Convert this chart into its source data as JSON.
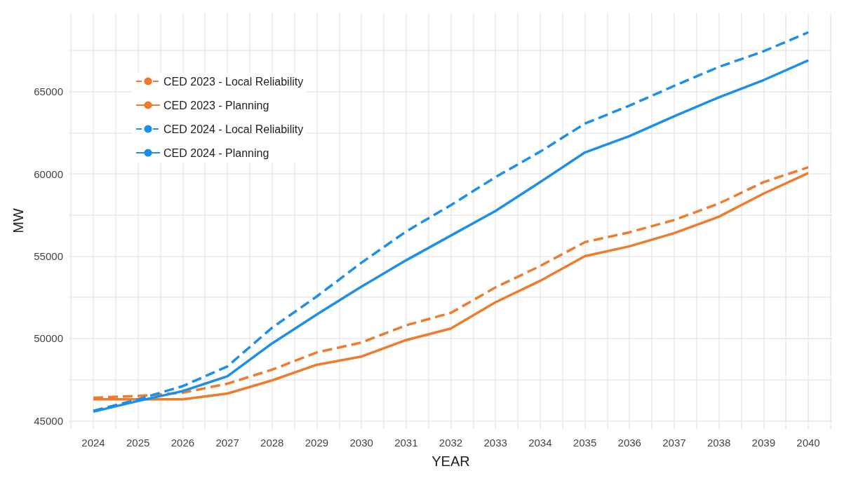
{
  "chart_data": {
    "type": "line",
    "xlabel": "YEAR",
    "ylabel": "MW",
    "x": [
      2024,
      2025,
      2026,
      2027,
      2028,
      2029,
      2030,
      2031,
      2032,
      2033,
      2034,
      2035,
      2036,
      2037,
      2038,
      2039,
      2040
    ],
    "xlim": [
      2023.45,
      2040.55
    ],
    "xticks": [
      {
        "value": 2023.5,
        "label": null
      },
      2024,
      {
        "value": 2024.5,
        "label": null
      },
      2025,
      {
        "value": 2025.5,
        "label": null
      },
      2026,
      {
        "value": 2026.5,
        "label": null
      },
      2027,
      {
        "value": 2027.5,
        "label": null
      },
      2028,
      {
        "value": 2028.5,
        "label": null
      },
      2029,
      {
        "value": 2029.5,
        "label": null
      },
      2030,
      {
        "value": 2030.5,
        "label": null
      },
      2031,
      {
        "value": 2031.5,
        "label": null
      },
      2032,
      {
        "value": 2032.5,
        "label": null
      },
      2033,
      {
        "value": 2033.5,
        "label": null
      },
      2034,
      {
        "value": 2034.5,
        "label": null
      },
      2035,
      {
        "value": 2035.5,
        "label": null
      },
      2036,
      {
        "value": 2036.5,
        "label": null
      },
      2037,
      {
        "value": 2037.5,
        "label": null
      },
      2038,
      {
        "value": 2038.5,
        "label": null
      },
      2039,
      {
        "value": 2039.5,
        "label": null
      },
      2040,
      {
        "value": 2040.5,
        "label": null
      }
    ],
    "ylim": [
      44500,
      69800
    ],
    "yticks": [
      45000,
      {
        "value": 47500,
        "label": null
      },
      50000,
      {
        "value": 52500,
        "label": null
      },
      55000,
      {
        "value": 57500,
        "label": null
      },
      60000,
      {
        "value": 62500,
        "label": null
      },
      65000,
      {
        "value": 67500,
        "label": null
      }
    ],
    "grid": true,
    "legend": "top left",
    "marker": "none",
    "series": [
      {
        "name": "CED 2023 - Local Reliability",
        "color": "#ef7b2d",
        "line_style": "dashed",
        "values": [
          46400,
          46500,
          46700,
          47250,
          48100,
          49150,
          49750,
          50800,
          51550,
          53100,
          54400,
          55850,
          56450,
          57200,
          58200,
          59500,
          60400
        ]
      },
      {
        "name": "CED 2023 - Planning",
        "color": "#ef7b2d",
        "line_style": "solid",
        "values": [
          46300,
          46300,
          46300,
          46650,
          47450,
          48400,
          48900,
          49900,
          50600,
          52200,
          53500,
          55000,
          55600,
          56400,
          57400,
          58800,
          60050
        ]
      },
      {
        "name": "CED 2024 - Local Reliability",
        "color": "#1b8fe9",
        "line_style": "dashed",
        "values": [
          45600,
          46300,
          47100,
          48300,
          50650,
          52550,
          54600,
          56500,
          58100,
          59800,
          61350,
          63050,
          64150,
          65350,
          66500,
          67450,
          68600
        ]
      },
      {
        "name": "CED 2024 - Planning",
        "color": "#1b8fe9",
        "line_style": "solid",
        "values": [
          45550,
          46200,
          46800,
          47700,
          49700,
          51450,
          53150,
          54750,
          56250,
          57750,
          59500,
          61300,
          62300,
          63500,
          64650,
          65700,
          66900
        ]
      }
    ]
  }
}
